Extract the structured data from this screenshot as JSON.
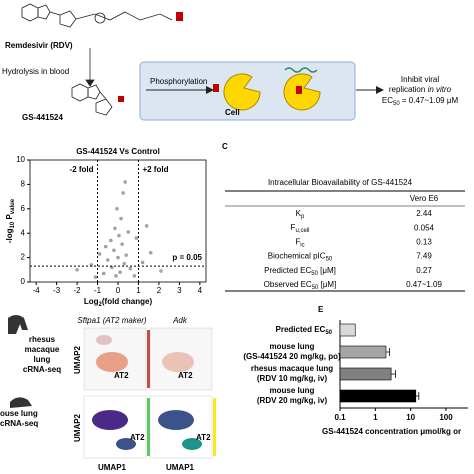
{
  "panel_a": {
    "drug": "Remdesivir (RDV)",
    "step": "Hydrolysis in blood",
    "metabolite": "GS-441524",
    "phosphorylation": "Phosphorylation",
    "cell": "Cell",
    "outcome": [
      "Inhibit viral",
      "replication",
      "in vitro"
    ],
    "ec50": {
      "text": "EC",
      "sub": "50",
      "after": " = 0.47~1.09 μM"
    }
  },
  "panel_b": {
    "title": "GS-441524 Vs Control",
    "left_fold": "-2 fold",
    "right_fold": "+2 fold",
    "p_label": "p = 0.05",
    "y_label": {
      "pre": "-log",
      "sub": "10",
      "mid": " P",
      "sub2": "value"
    },
    "x_label": {
      "pre": "Log",
      "sub": "2",
      "after": "(fold change)"
    },
    "xlim": [
      -4.3,
      4.3
    ],
    "xticks": [
      -4,
      -3,
      -2,
      -1,
      0,
      1,
      2,
      3,
      4
    ],
    "ylim": [
      0,
      10
    ],
    "yticks": [
      0,
      2,
      4,
      6,
      8,
      10
    ],
    "fold_lines": [
      -1,
      1
    ],
    "p_line": 1.3,
    "point_color": "#a6a6a6",
    "points": [
      [
        -0.1,
        0.5
      ],
      [
        0.1,
        0.8
      ],
      [
        -0.3,
        1.2
      ],
      [
        0.3,
        1.5
      ],
      [
        0,
        2.0
      ],
      [
        -0.2,
        2.6
      ],
      [
        0.2,
        3.1
      ],
      [
        0.05,
        3.8
      ],
      [
        -0.15,
        4.4
      ],
      [
        0.4,
        2.2
      ],
      [
        -0.5,
        1.8
      ],
      [
        0.6,
        1.1
      ],
      [
        -0.7,
        0.7
      ],
      [
        0.8,
        0.5
      ],
      [
        0.15,
        5.2
      ],
      [
        -0.05,
        6.0
      ],
      [
        0.25,
        7.3
      ],
      [
        -0.35,
        3.4
      ],
      [
        0.5,
        4.1
      ],
      [
        -0.6,
        2.9
      ],
      [
        1.2,
        1.6
      ],
      [
        -1.3,
        1.4
      ],
      [
        1.6,
        2.4
      ],
      [
        2.1,
        0.9
      ],
      [
        -2.0,
        1.0
      ],
      [
        0.9,
        3.6
      ],
      [
        -0.9,
        2.3
      ],
      [
        0.35,
        8.2
      ],
      [
        1.4,
        4.6
      ],
      [
        -1.1,
        0.4
      ]
    ]
  },
  "panel_c": {
    "letter": "C",
    "title": "Intracellular Bioavailability of GS-441524",
    "column": "Vero E6",
    "rows": [
      {
        "label": {
          "text": "K",
          "sub": "p"
        },
        "value": 2.44
      },
      {
        "label": {
          "text": "F",
          "sub": "u,cell"
        },
        "value": 0.054
      },
      {
        "label": {
          "text": "F",
          "sub": "ic"
        },
        "value": 0.13
      },
      {
        "label": {
          "text": "Biochemical pIC",
          "sub": "50"
        },
        "value": 7.49
      },
      {
        "label": {
          "text": "Predicted EC",
          "sub": "50",
          "after": " [μM]"
        },
        "value": 0.27
      },
      {
        "label": {
          "text": "Observed EC",
          "sub": "50",
          "after": " [μM]"
        },
        "value": "0.47~1.09"
      }
    ]
  },
  "panel_d": {
    "genes": [
      "Sftpa1 (AT2 maker)",
      "Adk"
    ],
    "rhesus": [
      "rhesus",
      "macaque",
      "lung",
      "cRNA-seq"
    ],
    "mouse": [
      "ouse lung",
      "cRNA-seq"
    ],
    "umap_y": "UMAP2",
    "umap_x": "UMAP1",
    "cluster": "AT2"
  },
  "panel_e": {
    "letter": "E",
    "type": "bar",
    "categories": [
      {
        "name": "Predicted EC",
        "sub": "50"
      },
      {
        "name": "mouse lung",
        "detail": "(GS-441524 20 mg/kg, po)"
      },
      {
        "name": "rhesus macaque lung",
        "detail": "(RDV 10 mg/kg, iv)"
      },
      {
        "name": "mouse lung",
        "detail": "(RDV 20 mg/kg, iv)"
      }
    ],
    "values": [
      0.27,
      2.0,
      2.8,
      14
    ],
    "errors": [
      0,
      0.5,
      0.9,
      3
    ],
    "colors": [
      "#d9d9d9",
      "#a6a6a6",
      "#808080",
      "#000000"
    ],
    "log_x": true,
    "xlim": [
      0.1,
      100
    ],
    "xticks": [
      0.1,
      1,
      10,
      100
    ],
    "x_label": "GS-441524 concentration μmol/kg or"
  }
}
